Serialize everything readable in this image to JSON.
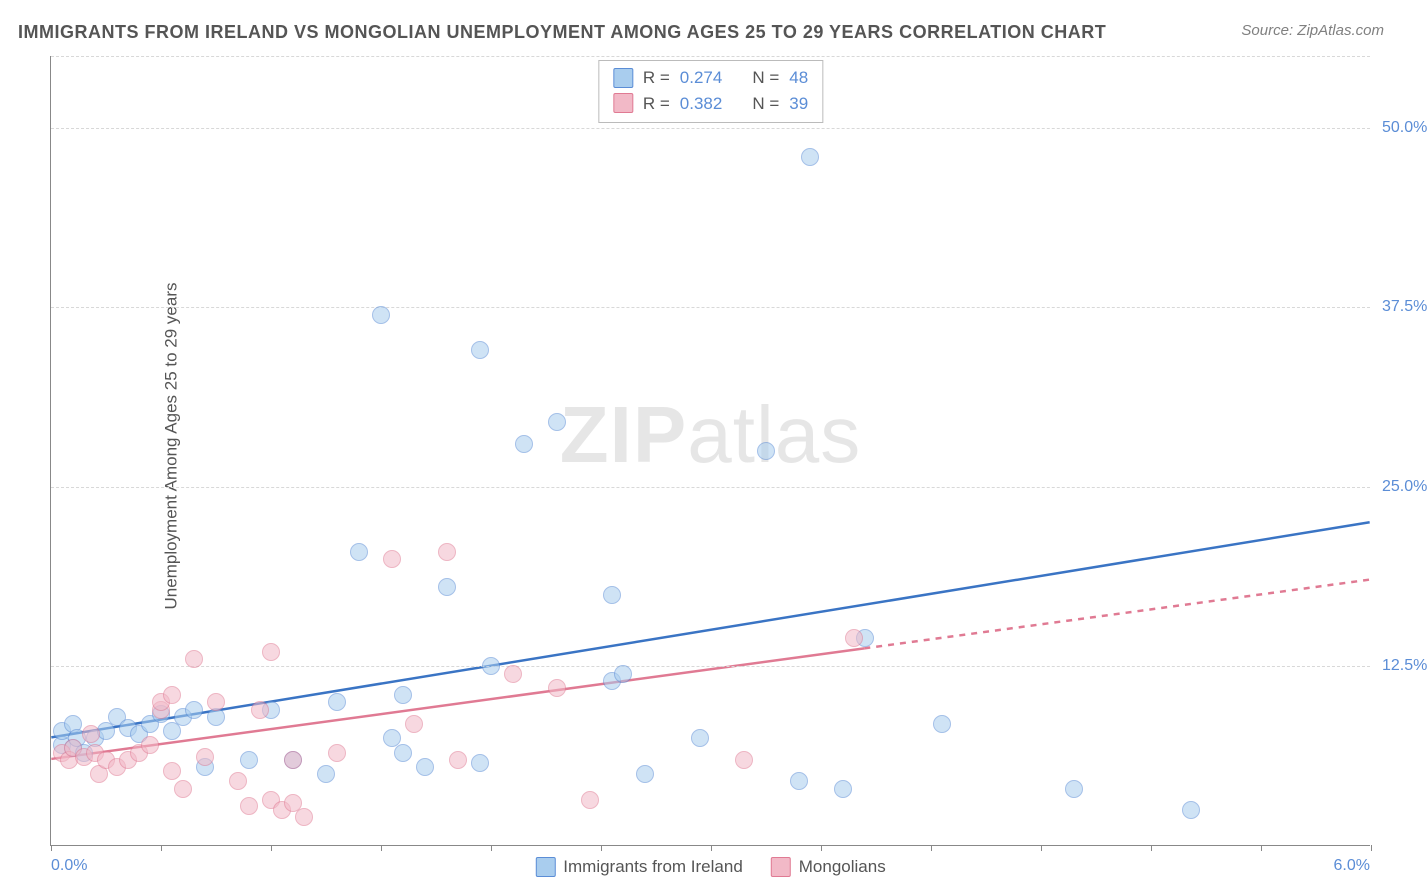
{
  "title": "IMMIGRANTS FROM IRELAND VS MONGOLIAN UNEMPLOYMENT AMONG AGES 25 TO 29 YEARS CORRELATION CHART",
  "source_label": "Source:",
  "source_name": "ZipAtlas.com",
  "ylabel": "Unemployment Among Ages 25 to 29 years",
  "watermark_bold": "ZIP",
  "watermark_thin": "atlas",
  "chart": {
    "type": "scatter",
    "xlim": [
      0.0,
      6.0
    ],
    "ylim": [
      0.0,
      55.0
    ],
    "x_tick_positions": [
      0,
      0.5,
      1.0,
      1.5,
      2.0,
      2.5,
      3.0,
      3.5,
      4.0,
      4.5,
      5.0,
      5.5,
      6.0
    ],
    "x_axis_labels": [
      {
        "pos": 0.0,
        "text": "0.0%"
      },
      {
        "pos": 6.0,
        "text": "6.0%"
      }
    ],
    "y_gridlines": [
      12.5,
      25.0,
      37.5,
      50.0,
      55.0
    ],
    "y_axis_labels": [
      {
        "pos": 12.5,
        "text": "12.5%"
      },
      {
        "pos": 25.0,
        "text": "25.0%"
      },
      {
        "pos": 37.5,
        "text": "37.5%"
      },
      {
        "pos": 50.0,
        "text": "50.0%"
      }
    ],
    "background_color": "#ffffff",
    "grid_color": "#d8d8d8",
    "axis_color": "#888888",
    "point_radius": 9,
    "point_opacity": 0.55
  },
  "series": [
    {
      "name": "Immigrants from Ireland",
      "key": "ireland",
      "fill": "#a9cdee",
      "stroke": "#5b8dd6",
      "line_color": "#3a74c4",
      "line_width": 2.5,
      "R": "0.274",
      "N": "48",
      "trend": {
        "x0": 0.0,
        "y0": 7.5,
        "x1": 6.0,
        "y1": 22.5,
        "dash_from_x": null
      },
      "points": [
        [
          0.05,
          7.0
        ],
        [
          0.05,
          8.0
        ],
        [
          0.1,
          8.5
        ],
        [
          0.1,
          6.8
        ],
        [
          0.12,
          7.5
        ],
        [
          0.15,
          6.5
        ],
        [
          0.2,
          7.5
        ],
        [
          0.25,
          8.0
        ],
        [
          0.3,
          9.0
        ],
        [
          0.35,
          8.2
        ],
        [
          0.4,
          7.8
        ],
        [
          0.45,
          8.5
        ],
        [
          0.5,
          9.2
        ],
        [
          0.55,
          8.0
        ],
        [
          0.6,
          9.0
        ],
        [
          0.65,
          9.5
        ],
        [
          0.7,
          5.5
        ],
        [
          0.75,
          9.0
        ],
        [
          0.9,
          6.0
        ],
        [
          1.0,
          9.5
        ],
        [
          1.1,
          6.0
        ],
        [
          1.25,
          5.0
        ],
        [
          1.3,
          10.0
        ],
        [
          1.4,
          20.5
        ],
        [
          1.5,
          37.0
        ],
        [
          1.55,
          7.5
        ],
        [
          1.6,
          6.5
        ],
        [
          1.6,
          10.5
        ],
        [
          1.7,
          5.5
        ],
        [
          1.8,
          18.0
        ],
        [
          1.95,
          5.8
        ],
        [
          1.95,
          34.5
        ],
        [
          2.0,
          12.5
        ],
        [
          2.15,
          28.0
        ],
        [
          2.3,
          29.5
        ],
        [
          2.55,
          17.5
        ],
        [
          2.55,
          11.5
        ],
        [
          2.6,
          12.0
        ],
        [
          2.7,
          5.0
        ],
        [
          2.95,
          7.5
        ],
        [
          3.25,
          27.5
        ],
        [
          3.4,
          4.5
        ],
        [
          3.45,
          48.0
        ],
        [
          3.6,
          4.0
        ],
        [
          3.7,
          14.5
        ],
        [
          4.05,
          8.5
        ],
        [
          4.65,
          4.0
        ],
        [
          5.18,
          2.5
        ]
      ]
    },
    {
      "name": "Mongolians",
      "key": "mongolians",
      "fill": "#f2b9c7",
      "stroke": "#e07a93",
      "line_color": "#e07a93",
      "line_width": 2.5,
      "R": "0.382",
      "N": "39",
      "trend": {
        "x0": 0.0,
        "y0": 6.0,
        "x1": 6.0,
        "y1": 18.5,
        "dash_from_x": 3.7
      },
      "points": [
        [
          0.05,
          6.5
        ],
        [
          0.08,
          6.0
        ],
        [
          0.1,
          6.8
        ],
        [
          0.15,
          6.2
        ],
        [
          0.18,
          7.8
        ],
        [
          0.2,
          6.5
        ],
        [
          0.22,
          5.0
        ],
        [
          0.25,
          6.0
        ],
        [
          0.3,
          5.5
        ],
        [
          0.35,
          6.0
        ],
        [
          0.4,
          6.5
        ],
        [
          0.45,
          7.0
        ],
        [
          0.5,
          9.5
        ],
        [
          0.5,
          10.0
        ],
        [
          0.55,
          5.2
        ],
        [
          0.55,
          10.5
        ],
        [
          0.6,
          4.0
        ],
        [
          0.65,
          13.0
        ],
        [
          0.7,
          6.2
        ],
        [
          0.75,
          10.0
        ],
        [
          0.85,
          4.5
        ],
        [
          0.9,
          2.8
        ],
        [
          0.95,
          9.5
        ],
        [
          1.0,
          3.2
        ],
        [
          1.0,
          13.5
        ],
        [
          1.05,
          2.5
        ],
        [
          1.1,
          3.0
        ],
        [
          1.1,
          6.0
        ],
        [
          1.15,
          2.0
        ],
        [
          1.3,
          6.5
        ],
        [
          1.55,
          20.0
        ],
        [
          1.65,
          8.5
        ],
        [
          1.8,
          20.5
        ],
        [
          1.85,
          6.0
        ],
        [
          2.1,
          12.0
        ],
        [
          2.3,
          11.0
        ],
        [
          2.45,
          3.2
        ],
        [
          3.15,
          6.0
        ],
        [
          3.65,
          14.5
        ]
      ]
    }
  ],
  "legend_labels": {
    "R": "R =",
    "N": "N ="
  }
}
